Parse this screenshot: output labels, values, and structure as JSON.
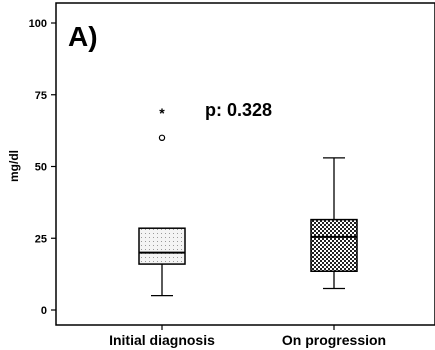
{
  "chart_data": {
    "type": "box",
    "panel_label": "A)",
    "annotation": "p: 0.328",
    "ylabel": "mg/dl",
    "ylim": [
      0,
      100
    ],
    "yticks": [
      0,
      25,
      50,
      75,
      100
    ],
    "categories": [
      "Initial diagnosis",
      "On progression"
    ],
    "boxes": [
      {
        "category": "Initial diagnosis",
        "whisker_low": 5,
        "q1": 16,
        "median": 20,
        "q3": 28.5,
        "whisker_high": 28.5,
        "fill": "light-dotted",
        "outliers": [
          60
        ],
        "extremes": [
          69
        ]
      },
      {
        "category": "On progression",
        "whisker_low": 7.5,
        "q1": 13.5,
        "median": 25.5,
        "q3": 31.5,
        "whisker_high": 53,
        "fill": "checkerboard",
        "outliers": [],
        "extremes": []
      }
    ],
    "outlier_symbol": "○",
    "extreme_symbol": "*"
  }
}
